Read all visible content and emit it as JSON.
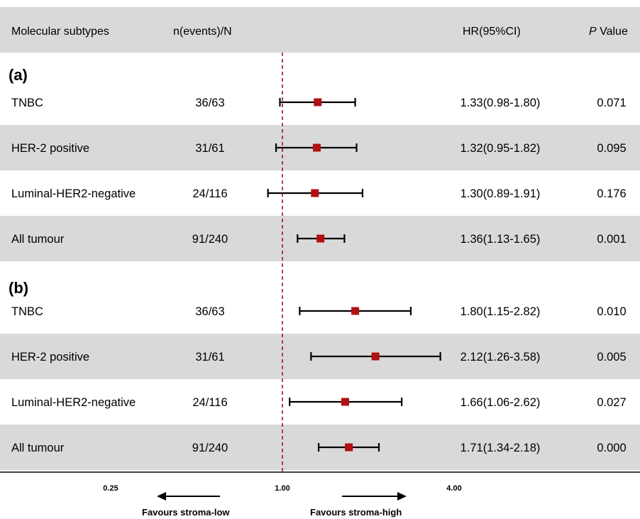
{
  "header": {
    "col_subtype": "Molecular subtypes",
    "col_events": "n(events)/N",
    "col_hr": "HR(95%CI)",
    "col_p_italic": "P",
    "col_p": " Value"
  },
  "sections": [
    {
      "label": "(a)",
      "rows": [
        {
          "subtype": "TNBC",
          "events": "36/63",
          "hr_text": "1.33(0.98-1.80)",
          "p": "0.071",
          "hr": 1.33,
          "lo": 0.98,
          "hi": 1.8
        },
        {
          "subtype": "HER-2 positive",
          "events": "31/61",
          "hr_text": "1.32(0.95-1.82)",
          "p": "0.095",
          "hr": 1.32,
          "lo": 0.95,
          "hi": 1.82
        },
        {
          "subtype": "Luminal-HER2-negative",
          "events": "24/116",
          "hr_text": "1.30(0.89-1.91)",
          "p": "0.176",
          "hr": 1.3,
          "lo": 0.89,
          "hi": 1.91
        },
        {
          "subtype": "All tumour",
          "events": "91/240",
          "hr_text": "1.36(1.13-1.65)",
          "p": "0.001",
          "hr": 1.36,
          "lo": 1.13,
          "hi": 1.65
        }
      ]
    },
    {
      "label": "(b)",
      "rows": [
        {
          "subtype": "TNBC",
          "events": "36/63",
          "hr_text": "1.80(1.15-2.82)",
          "p": "0.010",
          "hr": 1.8,
          "lo": 1.15,
          "hi": 2.82
        },
        {
          "subtype": "HER-2 positive",
          "events": "31/61",
          "hr_text": "2.12(1.26-3.58)",
          "p": "0.005",
          "hr": 2.12,
          "lo": 1.26,
          "hi": 3.58
        },
        {
          "subtype": "Luminal-HER2-negative",
          "events": "24/116",
          "hr_text": "1.66(1.06-2.62)",
          "p": "0.027",
          "hr": 1.66,
          "lo": 1.06,
          "hi": 2.62
        },
        {
          "subtype": "All tumour",
          "events": "91/240",
          "hr_text": "1.71(1.34-2.18)",
          "p": "0.000",
          "hr": 1.71,
          "lo": 1.34,
          "hi": 2.18
        }
      ]
    }
  ],
  "axis": {
    "scale": "log",
    "ticks": [
      {
        "value": 0.25,
        "label": "0.25"
      },
      {
        "value": 1.0,
        "label": "1.00"
      },
      {
        "value": 4.0,
        "label": "4.00"
      }
    ],
    "reference": 1.0,
    "favours_left": "Favours stroma-low",
    "favours_right": "Favours stroma-high"
  },
  "colors": {
    "marker": "#b01010",
    "reference_line": "#9b1a1a",
    "stripe": "#d9d9d9",
    "ci_line": "#000000"
  },
  "chart_data": {
    "type": "forest",
    "x_scale": "log",
    "xticks": [
      0.25,
      1.0,
      4.0
    ],
    "reference_line": 1.0,
    "series": [
      {
        "name": "(a)",
        "categories": [
          "TNBC",
          "HER-2 positive",
          "Luminal-HER2-negative",
          "All tumour"
        ],
        "hr": [
          1.33,
          1.32,
          1.3,
          1.36
        ],
        "ci_low": [
          0.98,
          0.95,
          0.89,
          1.13
        ],
        "ci_high": [
          1.8,
          1.82,
          1.91,
          1.65
        ]
      },
      {
        "name": "(b)",
        "categories": [
          "TNBC",
          "HER-2 positive",
          "Luminal-HER2-negative",
          "All tumour"
        ],
        "hr": [
          1.8,
          2.12,
          1.66,
          1.71
        ],
        "ci_low": [
          1.15,
          1.26,
          1.06,
          1.34
        ],
        "ci_high": [
          2.82,
          3.58,
          2.62,
          2.18
        ]
      }
    ]
  }
}
